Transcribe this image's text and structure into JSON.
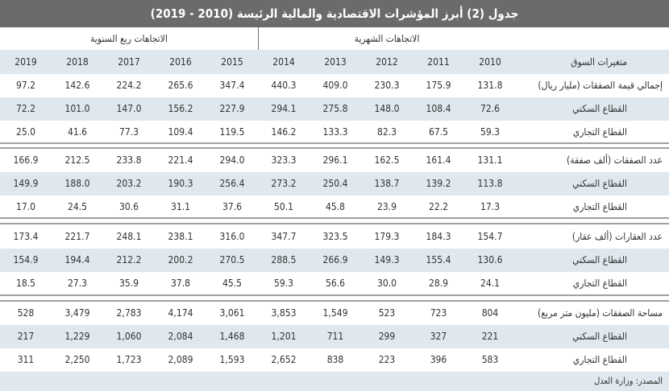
{
  "title": "جدول (2) أبرز المؤشرات الاقتصادية والمالية الرئيسة (2010 - 2019)",
  "headers": {
    "monthly": "الاتجاهات الشهرية",
    "quarterly": "الاتجاهات ربع السنوية"
  },
  "year_row": {
    "label": "متغيرات السوق",
    "years": [
      "2010",
      "2011",
      "2012",
      "2013",
      "2014",
      "2015",
      "2016",
      "2017",
      "2018",
      "2019"
    ]
  },
  "groups": [
    {
      "rows": [
        {
          "label": "إجمالي قيمة الصفقات (مليار ريال)",
          "values": [
            "131.8",
            "175.9",
            "230.3",
            "409.0",
            "440.3",
            "347.4",
            "265.6",
            "224.2",
            "142.6",
            "97.2"
          ]
        },
        {
          "label": "القطاع السكني",
          "values": [
            "72.6",
            "108.4",
            "148.0",
            "275.8",
            "294.1",
            "227.9",
            "156.2",
            "147.0",
            "101.0",
            "72.2"
          ]
        },
        {
          "label": "القطاع التجاري",
          "values": [
            "59.3",
            "67.5",
            "82.3",
            "133.3",
            "146.2",
            "119.5",
            "109.4",
            "77.3",
            "41.6",
            "25.0"
          ]
        }
      ]
    },
    {
      "rows": [
        {
          "label": "عدد الصفقات (ألف صفقة)",
          "values": [
            "131.1",
            "161.4",
            "162.5",
            "296.1",
            "323.3",
            "294.0",
            "221.4",
            "233.8",
            "212.5",
            "166.9"
          ]
        },
        {
          "label": "القطاع السكني",
          "values": [
            "113.8",
            "139.2",
            "138.7",
            "250.4",
            "273.2",
            "256.4",
            "190.3",
            "203.2",
            "188.0",
            "149.9"
          ]
        },
        {
          "label": "القطاع التجاري",
          "values": [
            "17.3",
            "22.2",
            "23.9",
            "45.8",
            "50.1",
            "37.6",
            "31.1",
            "30.6",
            "24.5",
            "17.0"
          ]
        }
      ]
    },
    {
      "rows": [
        {
          "label": "عدد العقارات (ألف عقار)",
          "values": [
            "154.7",
            "184.3",
            "179.3",
            "323.5",
            "347.7",
            "316.0",
            "238.1",
            "248.1",
            "221.7",
            "173.4"
          ]
        },
        {
          "label": "القطاع السكني",
          "values": [
            "130.6",
            "155.4",
            "149.3",
            "266.9",
            "288.5",
            "270.5",
            "200.2",
            "212.2",
            "194.4",
            "154.9"
          ]
        },
        {
          "label": "القطاع التجاري",
          "values": [
            "24.1",
            "28.9",
            "30.0",
            "56.6",
            "59.3",
            "45.5",
            "37.8",
            "35.9",
            "27.3",
            "18.5"
          ]
        }
      ]
    },
    {
      "rows": [
        {
          "label": "مساحة الصفقات (مليون متر مربع)",
          "values": [
            "804",
            "723",
            "523",
            "1,549",
            "3,853",
            "3,061",
            "4,174",
            "2,783",
            "3,479",
            "528"
          ]
        },
        {
          "label": "القطاع السكني",
          "values": [
            "221",
            "327",
            "299",
            "711",
            "1,201",
            "1,468",
            "2,084",
            "1,060",
            "1,229",
            "217"
          ]
        },
        {
          "label": "القطاع التجاري",
          "values": [
            "583",
            "396",
            "223",
            "838",
            "2,652",
            "1,593",
            "2,089",
            "1,723",
            "2,250",
            "311"
          ]
        }
      ]
    }
  ],
  "footer": "المصدر: وزارة العدل",
  "colors": {
    "title_bg": "#6b6b6b",
    "stripe": "#dfe8ee"
  }
}
